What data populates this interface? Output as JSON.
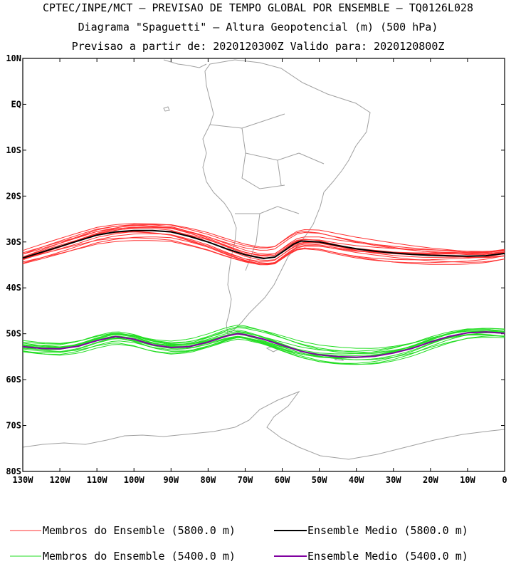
{
  "header": {
    "line1": "CPTEC/INPE/MCT — PREVISAO DE TEMPO GLOBAL POR ENSEMBLE — TQ0126L028",
    "line2": "Diagrama \"Spaguetti\" — Altura Geopotencial (m) (500 hPa)",
    "line3": "Previsao a partir de: 2020120300Z  Valido para: 2020120800Z"
  },
  "colors": {
    "members_5800": "#ff3030",
    "mean_5800": "#000000",
    "members_5400": "#22dd22",
    "mean_5400": "#8000a0",
    "coast": "#a0a0a0"
  },
  "chart_data": {
    "type": "line",
    "title": "Diagrama \"Spaguetti\" — Altura Geopotencial (m) (500 hPa)",
    "xlabel": "",
    "ylabel": "",
    "xlim": [
      -130,
      0
    ],
    "ylim": [
      -80,
      10
    ],
    "x_ticks": [
      {
        "value": -130,
        "label": "130W"
      },
      {
        "value": -120,
        "label": "120W"
      },
      {
        "value": -110,
        "label": "110W"
      },
      {
        "value": -100,
        "label": "100W"
      },
      {
        "value": -90,
        "label": "90W"
      },
      {
        "value": -80,
        "label": "80W"
      },
      {
        "value": -70,
        "label": "70W"
      },
      {
        "value": -60,
        "label": "60W"
      },
      {
        "value": -50,
        "label": "50W"
      },
      {
        "value": -40,
        "label": "40W"
      },
      {
        "value": -30,
        "label": "30W"
      },
      {
        "value": -20,
        "label": "20W"
      },
      {
        "value": -10,
        "label": "10W"
      },
      {
        "value": 0,
        "label": "0"
      }
    ],
    "y_ticks": [
      {
        "value": 10,
        "label": "10N"
      },
      {
        "value": 0,
        "label": "EQ"
      },
      {
        "value": -10,
        "label": "10S"
      },
      {
        "value": -20,
        "label": "20S"
      },
      {
        "value": -30,
        "label": "30S"
      },
      {
        "value": -40,
        "label": "40S"
      },
      {
        "value": -50,
        "label": "50S"
      },
      {
        "value": -60,
        "label": "60S"
      },
      {
        "value": -70,
        "label": "70S"
      },
      {
        "value": -80,
        "label": "80S"
      }
    ],
    "legend": [
      {
        "label": "Membros do Ensemble (5800.0 m)",
        "color_key": "members_5800"
      },
      {
        "label": "Ensemble Medio (5800.0 m)",
        "color_key": "mean_5800"
      },
      {
        "label": "Membros do Ensemble (5400.0 m)",
        "color_key": "members_5400"
      },
      {
        "label": "Ensemble Medio (5400.0 m)",
        "color_key": "mean_5400"
      }
    ],
    "series": [
      {
        "name": "Ensemble Medio (5800.0 m)",
        "color_key": "mean_5800",
        "role": "mean",
        "x": [
          -130,
          -120,
          -110,
          -105,
          -100,
          -95,
          -90,
          -85,
          -80,
          -75,
          -70,
          -67,
          -65,
          -62,
          -60,
          -57,
          -55,
          -50,
          -45,
          -40,
          -35,
          -30,
          -25,
          -20,
          -15,
          -10,
          -5,
          0
        ],
        "y": [
          -33.5,
          -31.0,
          -28.5,
          -27.8,
          -27.5,
          -27.5,
          -27.8,
          -28.8,
          -30.0,
          -31.5,
          -32.8,
          -33.3,
          -33.6,
          -33.3,
          -32.2,
          -30.5,
          -29.8,
          -30.0,
          -30.8,
          -31.5,
          -32.0,
          -32.4,
          -32.7,
          -32.9,
          -33.0,
          -33.1,
          -33.0,
          -32.5
        ]
      },
      {
        "name": "Ensemble Medio (5400.0 m)",
        "color_key": "mean_5400",
        "role": "mean",
        "x": [
          -130,
          -125,
          -120,
          -115,
          -110,
          -105,
          -100,
          -95,
          -90,
          -85,
          -80,
          -75,
          -72,
          -70,
          -65,
          -60,
          -55,
          -50,
          -45,
          -40,
          -35,
          -30,
          -25,
          -20,
          -15,
          -10,
          -5,
          0
        ],
        "y": [
          -52.8,
          -53.2,
          -53.3,
          -52.7,
          -51.5,
          -50.6,
          -51.2,
          -52.4,
          -53.0,
          -52.8,
          -51.8,
          -50.5,
          -50.0,
          -50.2,
          -51.2,
          -52.5,
          -53.8,
          -54.6,
          -55.0,
          -55.1,
          -54.9,
          -54.2,
          -53.2,
          -51.8,
          -50.6,
          -49.8,
          -49.6,
          -49.9
        ]
      }
    ],
    "ensemble_members": {
      "5800": {
        "count": 15,
        "color_key": "members_5800",
        "offsets_deg": [
          1.8,
          -1.2,
          0.9,
          -0.4,
          1.4,
          -1.7,
          0.3,
          -0.8,
          2.2,
          -2.0,
          0.6,
          -0.1,
          1.1,
          -1.4,
          0.0
        ],
        "phase": [
          0.0,
          1.3,
          2.6,
          3.9,
          5.2,
          0.7,
          2.0,
          3.3,
          4.6,
          5.9,
          1.0,
          2.3,
          3.6,
          4.9,
          0.4
        ],
        "amplitude_deg": 0.9
      },
      "5400": {
        "count": 15,
        "color_key": "members_5400",
        "offsets_deg": [
          1.3,
          -0.9,
          0.7,
          -0.3,
          1.0,
          -1.1,
          0.2,
          -0.6,
          1.6,
          -1.4,
          0.5,
          -0.1,
          0.8,
          -1.0,
          0.0
        ],
        "phase": [
          0.5,
          1.8,
          3.1,
          4.4,
          5.7,
          1.2,
          2.5,
          3.8,
          5.1,
          0.2,
          1.5,
          2.8,
          4.1,
          5.4,
          0.9
        ],
        "amplitude_deg": 1.0
      }
    }
  }
}
